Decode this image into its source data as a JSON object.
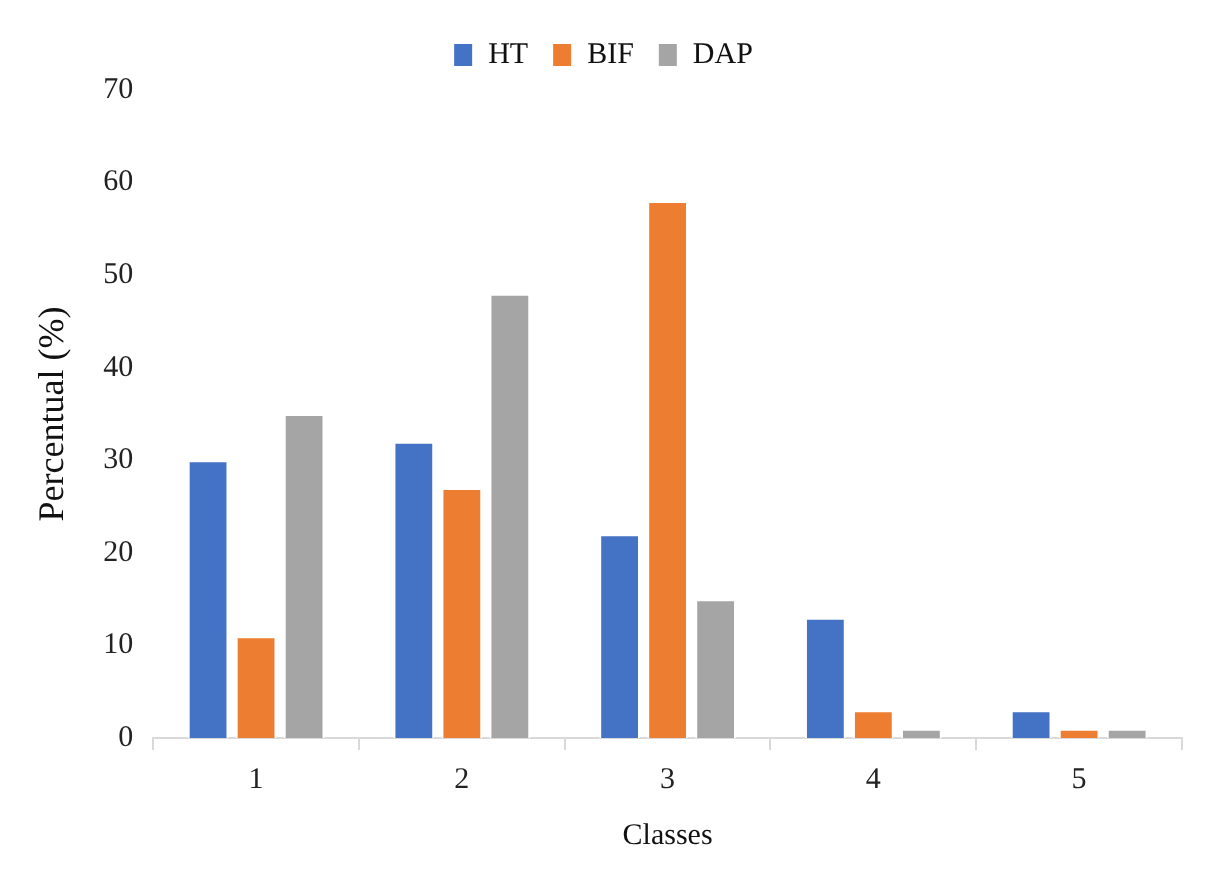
{
  "chart_data": {
    "type": "bar",
    "xlabel": "Classes",
    "ylabel": "Percentual (%)",
    "categories": [
      "1",
      "2",
      "3",
      "4",
      "5"
    ],
    "series": [
      {
        "name": "HT",
        "color": "#4472c4",
        "values": [
          30,
          32,
          22,
          13,
          3
        ]
      },
      {
        "name": "BIF",
        "color": "#ed7d31",
        "values": [
          11,
          27,
          58,
          3,
          1
        ]
      },
      {
        "name": "DAP",
        "color": "#a5a5a5",
        "values": [
          35,
          48,
          15,
          1,
          1
        ]
      }
    ],
    "ylim": [
      0,
      70
    ],
    "yticks": [
      0,
      10,
      20,
      30,
      40,
      50,
      60,
      70
    ],
    "grid": false,
    "legend": "top"
  }
}
